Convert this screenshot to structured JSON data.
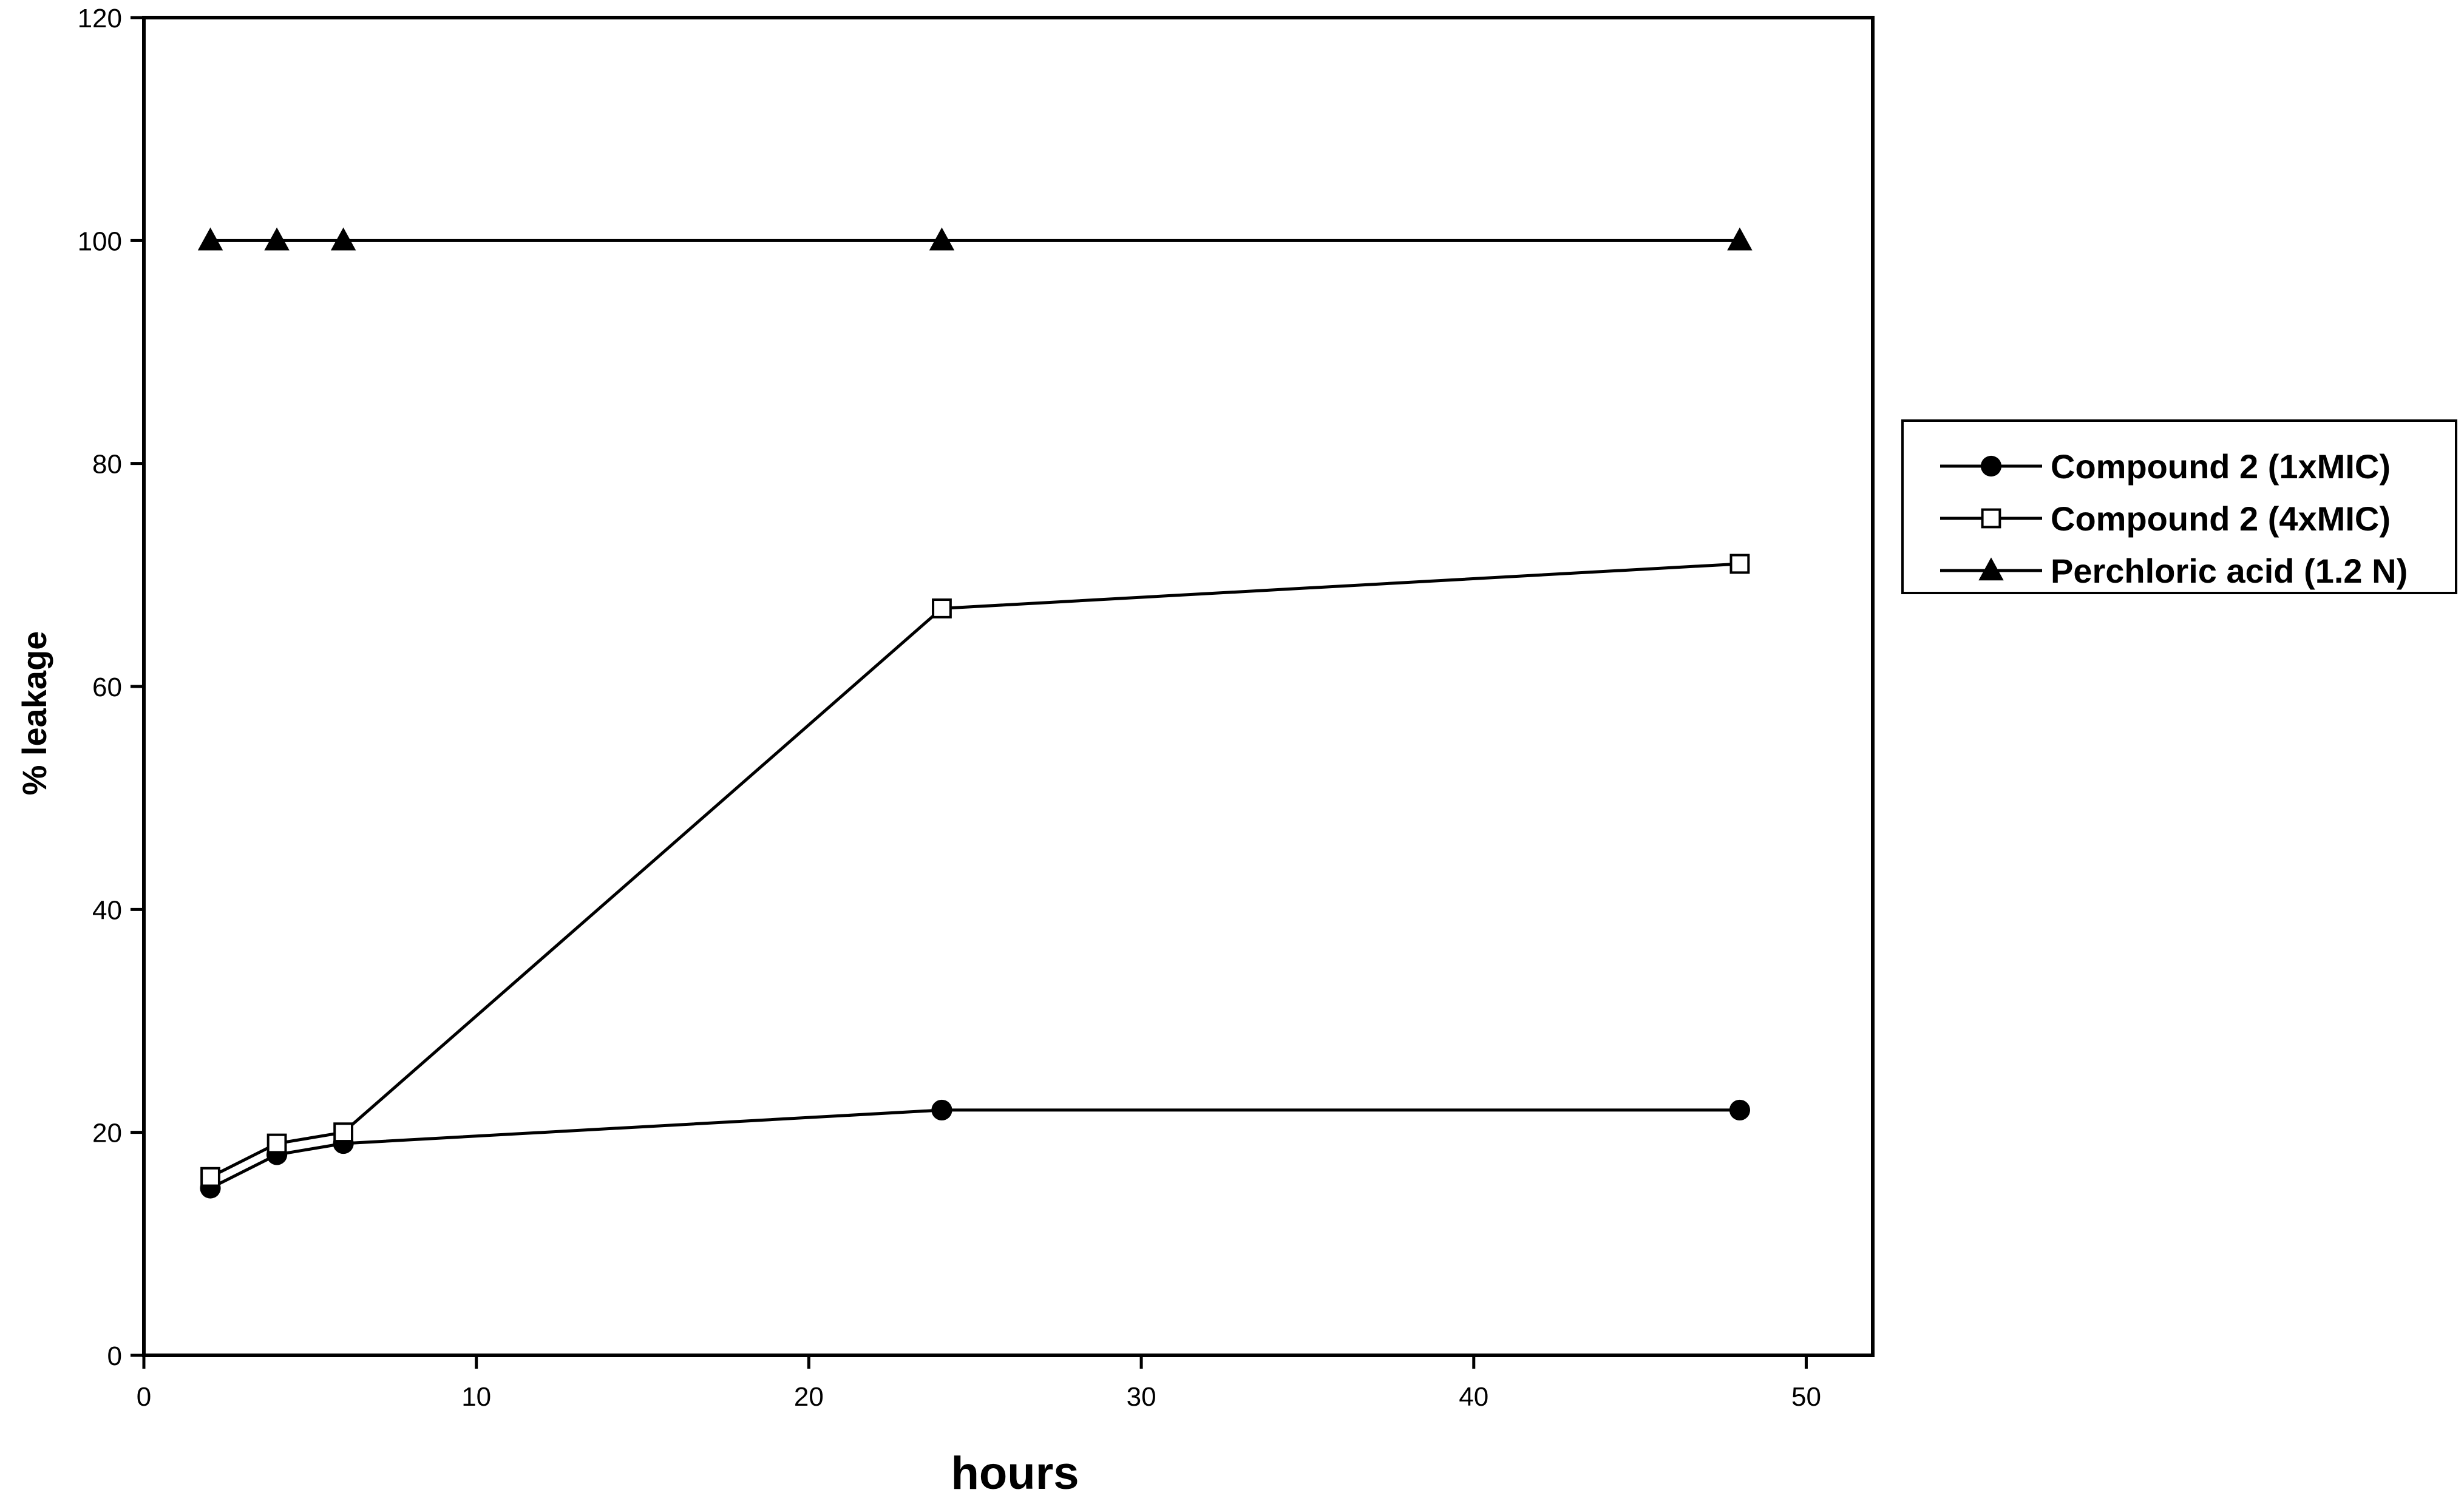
{
  "chart_data": {
    "type": "line",
    "title": "",
    "xlabel": "hours",
    "ylabel": "% leakage",
    "xlim": [
      0,
      52
    ],
    "ylim": [
      0,
      120
    ],
    "xticks": [
      0,
      10,
      20,
      30,
      40,
      50
    ],
    "yticks": [
      0,
      20,
      40,
      60,
      80,
      100,
      120
    ],
    "grid": false,
    "legend_position": "right",
    "series": [
      {
        "name": "Compound 2 (1xMIC)",
        "marker": "filled-circle",
        "color": "#000000",
        "x": [
          2,
          4,
          6,
          24,
          48
        ],
        "y": [
          15,
          18,
          19,
          22,
          22
        ]
      },
      {
        "name": "Compound 2 (4xMIC)",
        "marker": "open-square",
        "color": "#000000",
        "x": [
          2,
          4,
          6,
          24,
          48
        ],
        "y": [
          16,
          19,
          20,
          67,
          71
        ]
      },
      {
        "name": "Perchloric acid (1.2 N)",
        "marker": "filled-triangle",
        "color": "#000000",
        "x": [
          2,
          4,
          6,
          24,
          48
        ],
        "y": [
          100,
          100,
          100,
          100,
          100
        ]
      }
    ]
  }
}
